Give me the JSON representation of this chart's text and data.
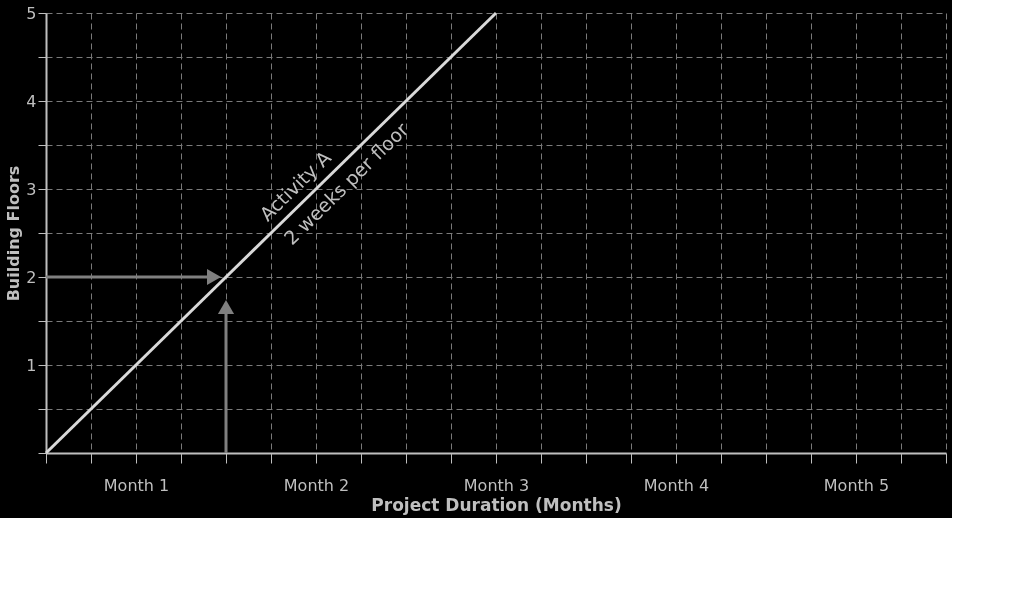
{
  "chart_data": {
    "type": "line",
    "xlabel": "Project Duration (Months)",
    "ylabel": "Building Floors",
    "categories": [
      null,
      null,
      "Month 1",
      null,
      null,
      null,
      "Month 2",
      null,
      null,
      null,
      "Month 3",
      null,
      null,
      null,
      "Month 4",
      null,
      null,
      null,
      "Month 5",
      null,
      null
    ],
    "series": [
      {
        "color": "#d9d9d9",
        "values": [
          0,
          0.5,
          1,
          1.5,
          2,
          2.5,
          3,
          3.5,
          4,
          4.5,
          5,
          null,
          null,
          null,
          null,
          null,
          null,
          null,
          null,
          null,
          null
        ]
      }
    ],
    "annotations": [
      "Activity A",
      "2 weeks per floor"
    ],
    "ylim": [
      0,
      5
    ],
    "yticks": [
      {
        "value": 0,
        "label": null
      },
      {
        "value": 0.5,
        "label": null
      },
      1,
      {
        "value": 1.5,
        "label": null
      },
      2,
      {
        "value": 2.5,
        "label": null
      },
      3,
      {
        "value": 3.5,
        "label": null
      },
      4,
      {
        "value": 4.5,
        "label": null
      },
      5
    ],
    "grid": true,
    "line_style": "solid"
  }
}
